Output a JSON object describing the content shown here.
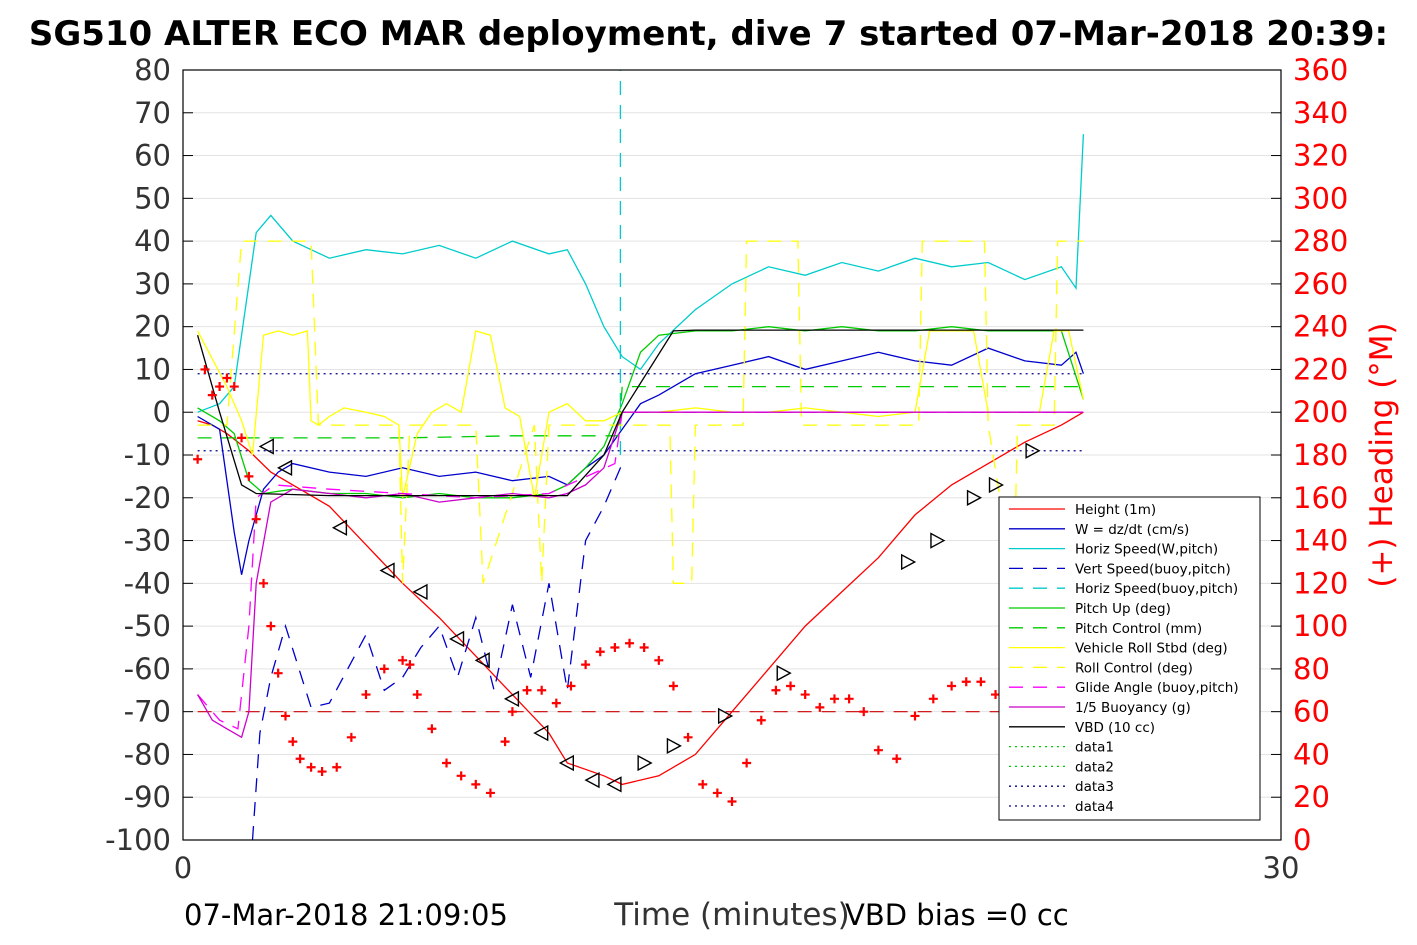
{
  "title": "SG510 ALTER ECO MAR deployment, dive 7 started 07-Mar-2018 20:39:",
  "footer": {
    "timestamp": "07-Mar-2018 21:09:05",
    "vbd_bias": "VBD bias =0 cc"
  },
  "chart_data": {
    "type": "line",
    "xlabel": "Time (minutes)",
    "xlim": [
      0,
      30
    ],
    "x_ticks": [
      "0",
      "30"
    ],
    "ylim_left": [
      -100,
      80
    ],
    "y_ticks_left": [
      "80",
      "70",
      "60",
      "50",
      "40",
      "30",
      "20",
      "10",
      "0",
      "-10",
      "-20",
      "-30",
      "-40",
      "-50",
      "-60",
      "-70",
      "-80",
      "-90",
      "-100"
    ],
    "ylabel_right": "(+) Heading (°M)",
    "ylim_right": [
      0,
      360
    ],
    "y_ticks_right": [
      "360",
      "340",
      "320",
      "300",
      "280",
      "260",
      "240",
      "220",
      "200",
      "180",
      "160",
      "140",
      "120",
      "100",
      "80",
      "60",
      "40",
      "20",
      "0"
    ],
    "grid": "horizontal",
    "legend_position": "lower-right inside",
    "reference_lines": {
      "data_dotted_upper": 9,
      "data_dotted_lower": -9,
      "heading_reference": 60
    },
    "series": [
      {
        "name": "Height (1m)",
        "color": "#ff0000",
        "style": "solid",
        "x": [
          0.4,
          0.8,
          1.2,
          1.8,
          2.4,
          3.0,
          4.0,
          5.0,
          6.0,
          7.0,
          8.0,
          9.0,
          10.0,
          10.5,
          11.5,
          12.0,
          13.0,
          14.0,
          15.0,
          16.0,
          17.0,
          18.0,
          19.0,
          20.0,
          21.0,
          22.0,
          23.0,
          24.0,
          24.6
        ],
        "y": [
          -2,
          -3,
          -5,
          -9,
          -14,
          -17,
          -22,
          -31,
          -40,
          -48,
          -57,
          -66,
          -75,
          -82,
          -85,
          -87,
          -85,
          -80,
          -70,
          -60,
          -50,
          -42,
          -34,
          -24,
          -17,
          -12,
          -7,
          -3,
          0
        ]
      },
      {
        "name": "W = dz/dt (cm/s)",
        "color": "#0000cc",
        "style": "solid",
        "x": [
          0.4,
          1.0,
          1.4,
          1.6,
          1.8,
          2.2,
          2.6,
          3.0,
          4.0,
          5.0,
          6.0,
          7.0,
          8.0,
          9.0,
          10.0,
          10.5,
          11.0,
          11.5,
          12.0,
          12.5,
          13.0,
          14.0,
          15.0,
          16.0,
          17.0,
          18.0,
          19.0,
          20.0,
          21.0,
          22.0,
          23.0,
          24.0,
          24.4,
          24.6
        ],
        "y": [
          -1,
          -4,
          -28,
          -38,
          -30,
          -18,
          -14,
          -12,
          -14,
          -15,
          -13,
          -15,
          -14,
          -16,
          -15,
          -17,
          -13,
          -10,
          -4,
          2,
          4,
          9,
          11,
          13,
          10,
          12,
          14,
          12,
          11,
          15,
          12,
          11,
          14,
          9
        ]
      },
      {
        "name": "Horiz Speed(W,pitch)",
        "color": "#00cccc",
        "style": "solid",
        "x": [
          0.4,
          1.0,
          1.4,
          1.8,
          2.0,
          2.4,
          3.0,
          4.0,
          5.0,
          6.0,
          7.0,
          8.0,
          9.0,
          10.0,
          10.5,
          11.0,
          11.5,
          12.0,
          12.5,
          13.0,
          14.0,
          15.0,
          16.0,
          17.0,
          18.0,
          19.0,
          20.0,
          21.0,
          22.0,
          23.0,
          24.0,
          24.4,
          24.6
        ],
        "y": [
          0,
          2,
          6,
          30,
          42,
          46,
          40,
          36,
          38,
          37,
          39,
          36,
          40,
          37,
          38,
          30,
          20,
          13,
          10,
          16,
          24,
          30,
          34,
          32,
          35,
          33,
          36,
          34,
          35,
          31,
          34,
          29,
          65
        ]
      },
      {
        "name": "Vert Speed(buoy,pitch)",
        "color": "#0000cc",
        "style": "dashed",
        "x": [
          1.9,
          2.1,
          2.4,
          2.8,
          3.5,
          4.0,
          4.5,
          5.0,
          5.5,
          6.0,
          6.5,
          7.0,
          7.5,
          8.0,
          8.5,
          9.0,
          9.5,
          10.0,
          10.5,
          11.0,
          11.5,
          12.0
        ],
        "y": [
          -100,
          -75,
          -62,
          -50,
          -69,
          -68,
          -60,
          -52,
          -65,
          -62,
          -55,
          -50,
          -62,
          -48,
          -65,
          -45,
          -62,
          -40,
          -65,
          -30,
          -22,
          -12
        ]
      },
      {
        "name": "Horiz Speed(buoy,pitch)",
        "color": "#00cccc",
        "style": "dashed",
        "x": [
          11.95,
          11.95
        ],
        "y": [
          -10,
          80
        ]
      },
      {
        "name": "Pitch Up (deg)",
        "color": "#00cc00",
        "style": "solid",
        "x": [
          0.4,
          1.0,
          1.4,
          1.8,
          2.2,
          3.0,
          4.0,
          5.0,
          6.0,
          7.0,
          8.0,
          9.0,
          10.0,
          10.5,
          11.0,
          11.5,
          12.0,
          12.5,
          13.0,
          14.0,
          15.0,
          16.0,
          17.0,
          18.0,
          19.0,
          20.0,
          21.0,
          22.0,
          23.0,
          24.0,
          24.6
        ],
        "y": [
          1,
          -2,
          -5,
          -16,
          -19,
          -18,
          -19,
          -19,
          -20,
          -19,
          -20,
          -20,
          -19,
          -17,
          -13,
          -8,
          2,
          14,
          18,
          19,
          19,
          20,
          19,
          20,
          19,
          19,
          20,
          19,
          19,
          19,
          3
        ]
      },
      {
        "name": "Pitch Control (mm)",
        "color": "#00cc00",
        "style": "dashed",
        "x": [
          0.4,
          1.2,
          1.6,
          3.0,
          6.0,
          9.0,
          11.9,
          12.0,
          15.0,
          18.0,
          21.0,
          24.0,
          24.6
        ],
        "y": [
          -6,
          -6,
          -6,
          -6,
          -6,
          -5.5,
          -5.5,
          6,
          6,
          6,
          6,
          6,
          6
        ]
      },
      {
        "name": "Vehicle Roll Stbd (deg)",
        "color": "#ffff00",
        "style": "solid",
        "x": [
          0.4,
          1.2,
          1.6,
          1.9,
          2.2,
          2.6,
          3.0,
          3.4,
          3.5,
          3.7,
          4.0,
          4.4,
          5.0,
          5.5,
          5.9,
          6.0,
          6.4,
          6.8,
          7.2,
          7.6,
          8.0,
          8.4,
          8.8,
          9.2,
          9.6,
          10.0,
          10.5,
          11.0,
          11.5,
          12.0,
          13.0,
          14.0,
          15.0,
          16.0,
          17.0,
          18.0,
          19.0,
          20.0,
          20.4,
          20.8,
          21.6,
          22.0,
          22.4,
          23.0,
          23.4,
          23.8,
          24.2,
          24.6
        ],
        "y": [
          19,
          6,
          -2,
          -10,
          18,
          19,
          18,
          19,
          -2,
          -3,
          -1,
          1,
          0,
          -1,
          -3,
          -20,
          -5,
          0,
          2,
          0,
          19,
          18,
          1,
          -1,
          -20,
          0,
          2,
          -2,
          -2,
          0,
          0,
          1,
          0,
          0,
          1,
          0,
          -1,
          0,
          19,
          19,
          19,
          0,
          0,
          0,
          0,
          19,
          19,
          3
        ]
      },
      {
        "name": "Roll Control (deg)",
        "color": "#ffff00",
        "style": "dashed",
        "x": [
          0.4,
          1.2,
          1.6,
          3.5,
          3.7,
          5.9,
          6.0,
          6.2,
          8.0,
          8.2,
          9.6,
          9.8,
          10.0,
          12.0,
          13.3,
          13.4,
          13.9,
          14.0,
          15.3,
          15.4,
          16.8,
          16.9,
          20.1,
          20.2,
          21.9,
          22.0,
          22.7,
          22.8,
          23.8,
          23.9,
          24.6
        ],
        "y": [
          -3,
          -3,
          40,
          40,
          -3,
          -3,
          -40,
          -3,
          -3,
          -40,
          -3,
          -40,
          -3,
          -3,
          -3,
          -40,
          -40,
          -3,
          -3,
          40,
          40,
          -3,
          -3,
          40,
          40,
          -3,
          -40,
          -3,
          -3,
          40,
          40
        ]
      },
      {
        "name": "Glide Angle (buoy,pitch)",
        "color": "#ff00ff",
        "style": "dashed",
        "x": [
          0.4,
          1.0,
          1.5,
          1.8,
          2.0,
          2.5,
          4.0,
          6.0,
          8.0,
          10.0,
          11.8,
          12.0,
          16.0,
          20.0,
          24.6
        ],
        "y": [
          -66,
          -72,
          -74,
          -50,
          -20,
          -17,
          -18,
          -19,
          -20,
          -19,
          -12,
          0,
          0,
          0,
          0
        ]
      },
      {
        "name": "1/5 Buoyancy (g)",
        "color": "#cc00cc",
        "style": "solid",
        "x": [
          0.4,
          0.8,
          1.2,
          1.6,
          1.8,
          2.0,
          2.4,
          3.0,
          4.0,
          5.0,
          6.0,
          7.0,
          8.0,
          9.0,
          10.0,
          10.5,
          11.0,
          11.5,
          12.0,
          14.0,
          16.0,
          18.0,
          20.0,
          22.0,
          24.6
        ],
        "y": [
          -66,
          -72,
          -74,
          -76,
          -70,
          -40,
          -21,
          -18,
          -19,
          -20,
          -19,
          -21,
          -20,
          -19,
          -20,
          -19,
          -17,
          -13,
          0,
          0,
          0,
          0,
          0,
          0,
          0
        ]
      },
      {
        "name": "VBD (10 cc)",
        "color": "#000000",
        "style": "solid",
        "x": [
          0.4,
          1.0,
          1.6,
          2.0,
          4.0,
          6.0,
          8.0,
          10.0,
          10.5,
          11.5,
          12.0,
          13.4,
          14.0,
          18.0,
          22.0,
          24.6
        ],
        "y": [
          18,
          0,
          -17,
          -19,
          -19.5,
          -19.5,
          -19.5,
          -19.5,
          -19.5,
          -10,
          0,
          19,
          19.2,
          19.2,
          19.2,
          19.2
        ]
      },
      {
        "name": "data1",
        "color": "#00cc00",
        "style": "dotted",
        "x": [],
        "y": []
      },
      {
        "name": "data2",
        "color": "#00cc00",
        "style": "dotted",
        "x": [],
        "y": []
      },
      {
        "name": "data3",
        "color": "#000088",
        "style": "dotted",
        "x": [],
        "y": []
      },
      {
        "name": "data4",
        "color": "#000088",
        "style": "dotted",
        "x": [],
        "y": []
      }
    ],
    "heading": {
      "axis": "right",
      "marker": "+",
      "color": "#ff0000",
      "x": [
        0.4,
        0.6,
        0.8,
        1.0,
        1.2,
        1.4,
        1.6,
        1.8,
        2.0,
        2.2,
        2.4,
        2.6,
        2.8,
        3.0,
        3.2,
        3.5,
        3.8,
        4.2,
        4.6,
        5.0,
        5.5,
        6.0,
        6.2,
        6.4,
        6.8,
        7.2,
        7.6,
        8.0,
        8.4,
        8.8,
        9.0,
        9.4,
        9.8,
        10.2,
        10.6,
        11.0,
        11.4,
        11.8,
        12.2,
        12.6,
        13.0,
        13.4,
        13.8,
        14.2,
        14.6,
        15.0,
        15.4,
        15.8,
        16.2,
        16.6,
        17.0,
        17.4,
        17.8,
        18.2,
        18.6,
        19.0,
        19.5,
        20.0,
        20.5,
        21.0,
        21.4,
        21.8,
        22.2,
        22.6,
        23.0,
        23.4,
        23.8,
        24.2,
        24.6
      ],
      "y": [
        178,
        220,
        208,
        212,
        216,
        212,
        188,
        170,
        150,
        120,
        100,
        78,
        58,
        46,
        38,
        34,
        32,
        34,
        48,
        68,
        80,
        84,
        82,
        68,
        52,
        36,
        30,
        26,
        22,
        46,
        60,
        70,
        70,
        64,
        72,
        82,
        88,
        90,
        92,
        90,
        84,
        72,
        48,
        26,
        22,
        18,
        36,
        56,
        70,
        72,
        68,
        62,
        66,
        66,
        60,
        42,
        38,
        58,
        66,
        72,
        74,
        74,
        68,
        50,
        40,
        36,
        34,
        32,
        30
      ]
    },
    "triangles": {
      "x": [
        2.3,
        2.8,
        4.3,
        5.6,
        6.5,
        7.5,
        8.2,
        9.0,
        9.8,
        10.5,
        11.2,
        11.8,
        12.6,
        13.4,
        14.8,
        16.4,
        19.8,
        20.6,
        21.6,
        22.2,
        23.2
      ],
      "y": [
        -8,
        -13,
        -27,
        -37,
        -42,
        -53,
        -58,
        -67,
        -75,
        -82,
        -86,
        -87,
        -82,
        -78,
        -71,
        -61,
        -35,
        -30,
        -20,
        -17,
        -9
      ]
    }
  }
}
